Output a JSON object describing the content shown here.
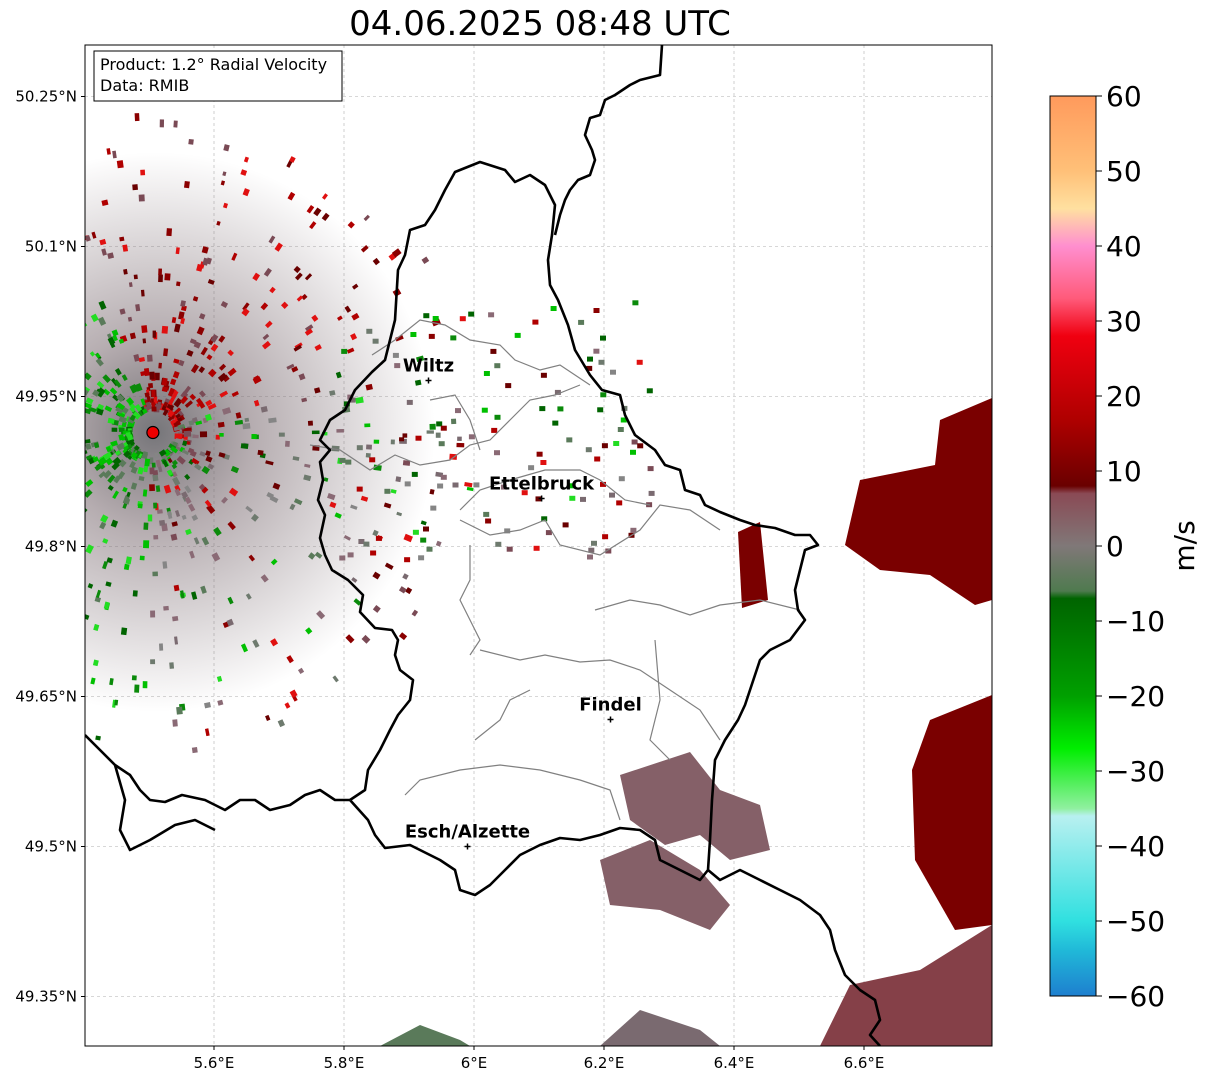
{
  "title": "04.06.2025 08:48 UTC",
  "infobox": {
    "product": "Product: 1.2° Radial Velocity",
    "data": "Data: RMIB"
  },
  "lat_ticks": [
    {
      "value": 50.25,
      "label": "50.25°N"
    },
    {
      "value": 50.1,
      "label": "50.1°N"
    },
    {
      "value": 49.95,
      "label": "49.95°N"
    },
    {
      "value": 49.8,
      "label": "49.8°N"
    },
    {
      "value": 49.65,
      "label": "49.65°N"
    },
    {
      "value": 49.5,
      "label": "49.5°N"
    },
    {
      "value": 49.35,
      "label": "49.35°N"
    }
  ],
  "lon_ticks": [
    {
      "value": 5.6,
      "label": "5.6°E"
    },
    {
      "value": 5.8,
      "label": "5.8°E"
    },
    {
      "value": 6.0,
      "label": "6°E"
    },
    {
      "value": 6.2,
      "label": "6.2°E"
    },
    {
      "value": 6.4,
      "label": "6.4°E"
    },
    {
      "value": 6.6,
      "label": "6.6°E"
    }
  ],
  "cities": [
    {
      "name": "Wiltz",
      "lon": 5.93,
      "lat": 49.966
    },
    {
      "name": "Ettelbruck",
      "lon": 6.104,
      "lat": 49.848
    },
    {
      "name": "Findel",
      "lon": 6.21,
      "lat": 49.627
    },
    {
      "name": "Esch/Alzette",
      "lon": 5.99,
      "lat": 49.5
    }
  ],
  "radar_site": {
    "lon": 5.506,
    "lat": 49.914
  },
  "colorbar": {
    "unit": "m/s",
    "min": -60,
    "max": 60,
    "tick_values": [
      60,
      50,
      40,
      30,
      20,
      10,
      0,
      -10,
      -20,
      -30,
      -40,
      -50,
      -60
    ],
    "tick_labels": [
      "60",
      "50",
      "40",
      "30",
      "20",
      "10",
      "0",
      "−10",
      "−20",
      "−30",
      "−40",
      "−50",
      "−60"
    ],
    "stops": [
      {
        "v": 60,
        "color": "#ff9a5c"
      },
      {
        "v": 50,
        "color": "#ffc078"
      },
      {
        "v": 45,
        "color": "#ffe0a0"
      },
      {
        "v": 40,
        "color": "#ff8fcf"
      },
      {
        "v": 33,
        "color": "#ff5a7a"
      },
      {
        "v": 28,
        "color": "#f00010"
      },
      {
        "v": 17,
        "color": "#b00000"
      },
      {
        "v": 8,
        "color": "#6a0000"
      },
      {
        "v": 7,
        "color": "#8a4a55"
      },
      {
        "v": 0,
        "color": "#807878"
      },
      {
        "v": -6,
        "color": "#4f7a4f"
      },
      {
        "v": -7,
        "color": "#006400"
      },
      {
        "v": -20,
        "color": "#00a000"
      },
      {
        "v": -27,
        "color": "#00ee00"
      },
      {
        "v": -35,
        "color": "#90f0a0"
      },
      {
        "v": -36,
        "color": "#b8f0f0"
      },
      {
        "v": -50,
        "color": "#30e0e0"
      },
      {
        "v": -54,
        "color": "#20b8d8"
      },
      {
        "v": -60,
        "color": "#1e7fcf"
      }
    ]
  },
  "colors": {
    "border": "#000000",
    "canton_lines": "#808080",
    "grid": "#b0b0b0",
    "radar_marker": "#ee0000",
    "inbound_green": "#0a8a0a",
    "outbound_red": "#8b0000",
    "mixed_gray": "#7a6a70"
  }
}
